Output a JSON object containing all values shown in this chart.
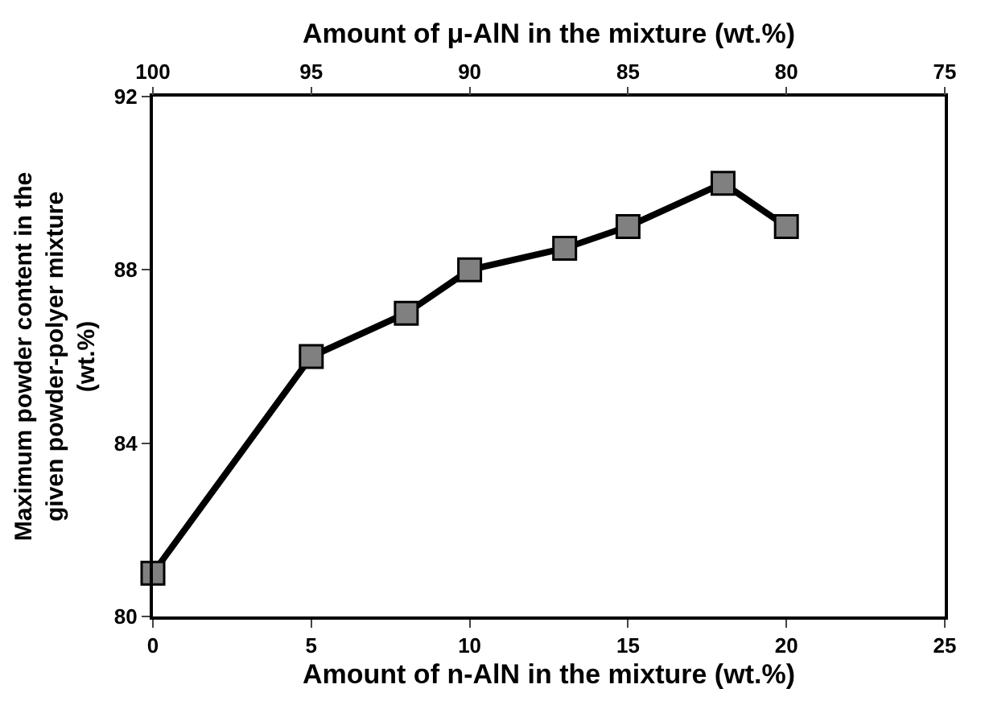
{
  "chart_data": {
    "type": "line",
    "xlabel": "Amount of n-AlN in the mixture (wt.%)",
    "x2label": "Amount of μ-AlN in the mixture (wt.%)",
    "ylabel": "Maximum powder content in the given powder-polyer mixture (wt.%)",
    "x": [
      0,
      5,
      8,
      10,
      13,
      15,
      18,
      20
    ],
    "series": [
      {
        "color": "#000000",
        "values": [
          81,
          86,
          87,
          88,
          88.5,
          89,
          90,
          89
        ]
      }
    ],
    "xlim": [
      0,
      25
    ],
    "xticks": [
      0,
      5,
      10,
      15,
      20,
      25
    ],
    "x2lim": [
      100,
      75
    ],
    "x2ticks": [
      100,
      95,
      90,
      85,
      80,
      75
    ],
    "ylim": [
      80,
      92
    ],
    "yticks": [
      80,
      84,
      88,
      92
    ],
    "marker": "square",
    "line_style": "solid",
    "legend": false
  }
}
